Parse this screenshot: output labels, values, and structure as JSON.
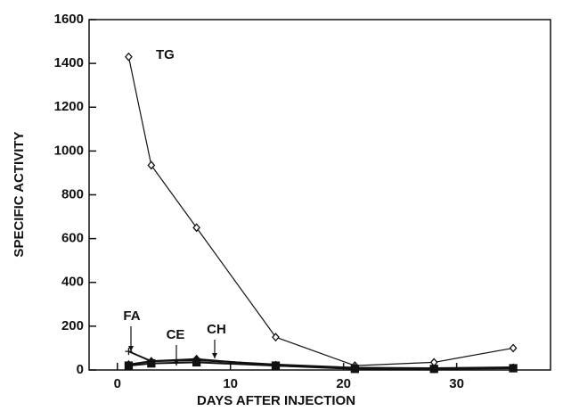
{
  "chart_data": {
    "type": "line",
    "x_label": "DAYS AFTER INJECTION",
    "y_label": "SPECIFIC ACTIVITY",
    "xlim": [
      -2.5,
      38.3
    ],
    "xticks": [
      0,
      10,
      20,
      30
    ],
    "ylim": [
      0,
      1600
    ],
    "yticks": [
      0,
      200,
      400,
      600,
      800,
      1000,
      1200,
      1400,
      1600
    ],
    "x": [
      1,
      3,
      7,
      14,
      21,
      28,
      35
    ],
    "series": [
      {
        "name": "TG",
        "color": "#111111",
        "marker": "open-diamond",
        "values": [
          1430,
          935,
          650,
          150,
          20,
          35,
          100
        ]
      },
      {
        "name": "FA",
        "color": "#111111",
        "marker": "plus",
        "values": [
          85,
          40,
          45,
          25,
          10,
          8,
          12
        ]
      },
      {
        "name": "CE",
        "color": "#111111",
        "marker": "filled-diamond",
        "values": [
          25,
          40,
          50,
          20,
          10,
          5,
          10
        ]
      },
      {
        "name": "CH",
        "color": "#111111",
        "marker": "filled-square",
        "values": [
          20,
          30,
          35,
          20,
          5,
          5,
          8
        ]
      }
    ]
  }
}
